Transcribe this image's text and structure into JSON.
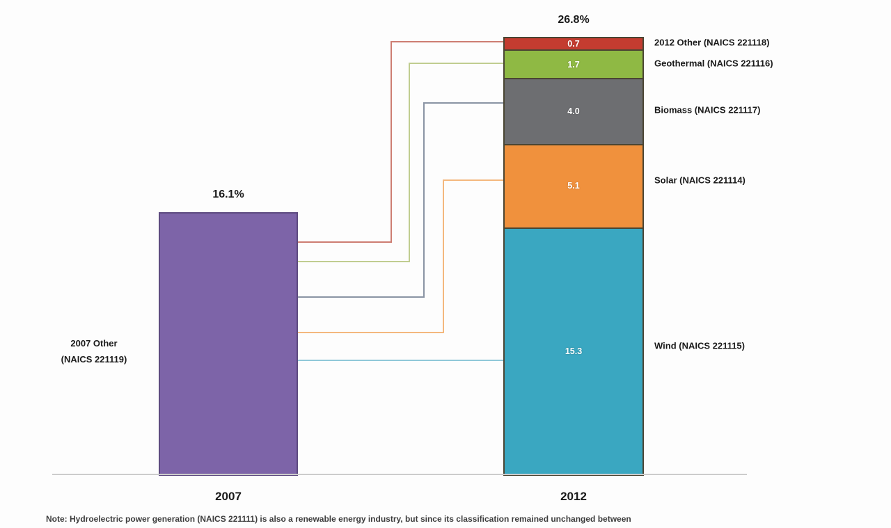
{
  "chart_data": {
    "type": "bar",
    "subtype": "stacked_bar_transition",
    "title": "",
    "xlabel": "",
    "ylabel": "",
    "unit": "percent share",
    "categories": [
      "2007",
      "2012"
    ],
    "left_bar": {
      "category": "2007",
      "total": 16.1,
      "total_label": "16.1%",
      "label_line1": "2007 Other",
      "label_line2": "(NAICS 221119)",
      "color": "#7d64a8",
      "border_color": "#5d4a80"
    },
    "right_bar": {
      "category": "2012",
      "total": 26.8,
      "total_label": "26.8%",
      "segment_border_color": "#4a4533",
      "segments": [
        {
          "name": "2012 Other (NAICS 221118)",
          "value": 0.7,
          "value_label": "0.7",
          "color": "#c43c30",
          "connector_color": "#cd7d72"
        },
        {
          "name": "Geothermal (NAICS 221116)",
          "value": 1.7,
          "value_label": "1.7",
          "color": "#8fb944",
          "connector_color": "#c0cd90"
        },
        {
          "name": "Biomass (NAICS 221117)",
          "value": 4.0,
          "value_label": "4.0",
          "color": "#6d6e71",
          "connector_color": "#8a94a4"
        },
        {
          "name": "Solar (NAICS 221114)",
          "value": 5.1,
          "value_label": "5.1",
          "color": "#f0913d",
          "connector_color": "#f4b87e"
        },
        {
          "name": "Wind (NAICS 221115)",
          "value": 15.3,
          "value_label": "15.3",
          "color": "#3aa7c1",
          "connector_color": "#90c8d9"
        }
      ]
    },
    "axis": {
      "color": "#cccccc"
    },
    "note": "Note: Hydroelectric power generation (NAICS 221111) is also a renewable energy industry, but since its classification remained unchanged between"
  }
}
